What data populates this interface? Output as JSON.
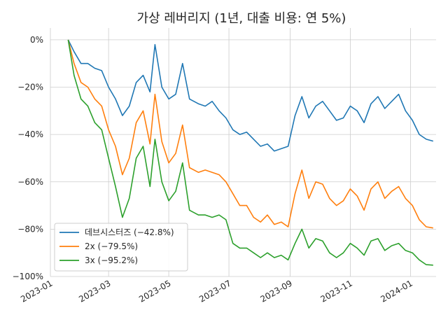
{
  "chart_data": {
    "type": "line",
    "title": "가상 레버리지 (1년, 대출 비용: 연 5%)",
    "xlabel": "",
    "ylabel": "",
    "x_range": [
      "2023-01-01",
      "2024-01-27"
    ],
    "ylim": [
      -1.0,
      0.05
    ],
    "grid": true,
    "legend_position": "lower-left",
    "x_ticks": [
      {
        "date": "2023-01-01",
        "label": "2023-01"
      },
      {
        "date": "2023-03-01",
        "label": "2023-03"
      },
      {
        "date": "2023-05-01",
        "label": "2023-05"
      },
      {
        "date": "2023-07-01",
        "label": "2023-07"
      },
      {
        "date": "2023-09-01",
        "label": "2023-09"
      },
      {
        "date": "2023-11-01",
        "label": "2023-11"
      },
      {
        "date": "2024-01-01",
        "label": "2024-01"
      }
    ],
    "y_ticks": [
      {
        "value": 0.0,
        "label": "0%"
      },
      {
        "value": -0.2,
        "label": "−20%"
      },
      {
        "value": -0.4,
        "label": "−40%"
      },
      {
        "value": -0.6,
        "label": "−60%"
      },
      {
        "value": -0.8,
        "label": "−80%"
      },
      {
        "value": -1.0,
        "label": "−100%"
      }
    ],
    "series": [
      {
        "name": "데브시스터즈 (−42.8%)",
        "color": "#1f77b4",
        "x": [
          "2023-01-19",
          "2023-01-25",
          "2023-02-01",
          "2023-02-08",
          "2023-02-15",
          "2023-02-22",
          "2023-03-01",
          "2023-03-08",
          "2023-03-15",
          "2023-03-22",
          "2023-03-29",
          "2023-04-05",
          "2023-04-12",
          "2023-04-17",
          "2023-04-24",
          "2023-05-01",
          "2023-05-08",
          "2023-05-15",
          "2023-05-22",
          "2023-05-31",
          "2023-06-07",
          "2023-06-14",
          "2023-06-21",
          "2023-06-28",
          "2023-07-05",
          "2023-07-12",
          "2023-07-19",
          "2023-07-26",
          "2023-08-02",
          "2023-08-09",
          "2023-08-16",
          "2023-08-23",
          "2023-08-30",
          "2023-09-06",
          "2023-09-13",
          "2023-09-20",
          "2023-09-27",
          "2023-10-04",
          "2023-10-11",
          "2023-10-18",
          "2023-10-25",
          "2023-11-01",
          "2023-11-08",
          "2023-11-15",
          "2023-11-22",
          "2023-11-29",
          "2023-12-06",
          "2023-12-13",
          "2023-12-20",
          "2023-12-27",
          "2024-01-03",
          "2024-01-10",
          "2024-01-17",
          "2024-01-24"
        ],
        "values": [
          0.0,
          -0.05,
          -0.1,
          -0.1,
          -0.12,
          -0.13,
          -0.2,
          -0.25,
          -0.32,
          -0.28,
          -0.18,
          -0.15,
          -0.22,
          -0.02,
          -0.2,
          -0.25,
          -0.23,
          -0.1,
          -0.25,
          -0.27,
          -0.28,
          -0.26,
          -0.3,
          -0.33,
          -0.38,
          -0.4,
          -0.39,
          -0.42,
          -0.45,
          -0.44,
          -0.47,
          -0.46,
          -0.45,
          -0.32,
          -0.24,
          -0.33,
          -0.28,
          -0.26,
          -0.3,
          -0.34,
          -0.33,
          -0.28,
          -0.3,
          -0.35,
          -0.27,
          -0.24,
          -0.29,
          -0.26,
          -0.23,
          -0.3,
          -0.34,
          -0.4,
          -0.42,
          -0.428
        ]
      },
      {
        "name": "2x (−79.5%)",
        "color": "#ff7f0e",
        "x": [
          "2023-01-19",
          "2023-01-25",
          "2023-02-01",
          "2023-02-08",
          "2023-02-15",
          "2023-02-22",
          "2023-03-01",
          "2023-03-08",
          "2023-03-15",
          "2023-03-22",
          "2023-03-29",
          "2023-04-05",
          "2023-04-12",
          "2023-04-17",
          "2023-04-24",
          "2023-05-01",
          "2023-05-08",
          "2023-05-15",
          "2023-05-22",
          "2023-05-31",
          "2023-06-07",
          "2023-06-14",
          "2023-06-21",
          "2023-06-28",
          "2023-07-05",
          "2023-07-12",
          "2023-07-19",
          "2023-07-26",
          "2023-08-02",
          "2023-08-09",
          "2023-08-16",
          "2023-08-23",
          "2023-08-30",
          "2023-09-06",
          "2023-09-13",
          "2023-09-20",
          "2023-09-27",
          "2023-10-04",
          "2023-10-11",
          "2023-10-18",
          "2023-10-25",
          "2023-11-01",
          "2023-11-08",
          "2023-11-15",
          "2023-11-22",
          "2023-11-29",
          "2023-12-06",
          "2023-12-13",
          "2023-12-20",
          "2023-12-27",
          "2024-01-03",
          "2024-01-10",
          "2024-01-17",
          "2024-01-24"
        ],
        "values": [
          0.0,
          -0.1,
          -0.18,
          -0.2,
          -0.25,
          -0.28,
          -0.38,
          -0.45,
          -0.57,
          -0.5,
          -0.35,
          -0.3,
          -0.44,
          -0.23,
          -0.43,
          -0.52,
          -0.48,
          -0.36,
          -0.54,
          -0.56,
          -0.55,
          -0.56,
          -0.57,
          -0.6,
          -0.65,
          -0.7,
          -0.7,
          -0.75,
          -0.77,
          -0.74,
          -0.78,
          -0.77,
          -0.79,
          -0.65,
          -0.55,
          -0.67,
          -0.6,
          -0.61,
          -0.67,
          -0.7,
          -0.68,
          -0.63,
          -0.66,
          -0.72,
          -0.63,
          -0.6,
          -0.67,
          -0.64,
          -0.62,
          -0.67,
          -0.7,
          -0.76,
          -0.79,
          -0.795
        ]
      },
      {
        "name": "3x (−95.2%)",
        "color": "#2ca02c",
        "x": [
          "2023-01-19",
          "2023-01-25",
          "2023-02-01",
          "2023-02-08",
          "2023-02-15",
          "2023-02-22",
          "2023-03-01",
          "2023-03-08",
          "2023-03-15",
          "2023-03-22",
          "2023-03-29",
          "2023-04-05",
          "2023-04-12",
          "2023-04-17",
          "2023-04-24",
          "2023-05-01",
          "2023-05-08",
          "2023-05-15",
          "2023-05-22",
          "2023-05-31",
          "2023-06-07",
          "2023-06-14",
          "2023-06-21",
          "2023-06-28",
          "2023-07-05",
          "2023-07-12",
          "2023-07-19",
          "2023-07-26",
          "2023-08-02",
          "2023-08-09",
          "2023-08-16",
          "2023-08-23",
          "2023-08-30",
          "2023-09-06",
          "2023-09-13",
          "2023-09-20",
          "2023-09-27",
          "2023-10-04",
          "2023-10-11",
          "2023-10-18",
          "2023-10-25",
          "2023-11-01",
          "2023-11-08",
          "2023-11-15",
          "2023-11-22",
          "2023-11-29",
          "2023-12-06",
          "2023-12-13",
          "2023-12-20",
          "2023-12-27",
          "2024-01-03",
          "2024-01-10",
          "2024-01-17",
          "2024-01-24"
        ],
        "values": [
          0.0,
          -0.15,
          -0.25,
          -0.28,
          -0.35,
          -0.38,
          -0.5,
          -0.62,
          -0.75,
          -0.67,
          -0.5,
          -0.45,
          -0.62,
          -0.42,
          -0.6,
          -0.68,
          -0.64,
          -0.52,
          -0.72,
          -0.74,
          -0.74,
          -0.75,
          -0.74,
          -0.76,
          -0.86,
          -0.88,
          -0.88,
          -0.9,
          -0.92,
          -0.9,
          -0.92,
          -0.91,
          -0.93,
          -0.86,
          -0.8,
          -0.88,
          -0.84,
          -0.85,
          -0.9,
          -0.92,
          -0.9,
          -0.86,
          -0.88,
          -0.91,
          -0.85,
          -0.84,
          -0.89,
          -0.87,
          -0.86,
          -0.89,
          -0.9,
          -0.93,
          -0.95,
          -0.952
        ]
      }
    ]
  }
}
